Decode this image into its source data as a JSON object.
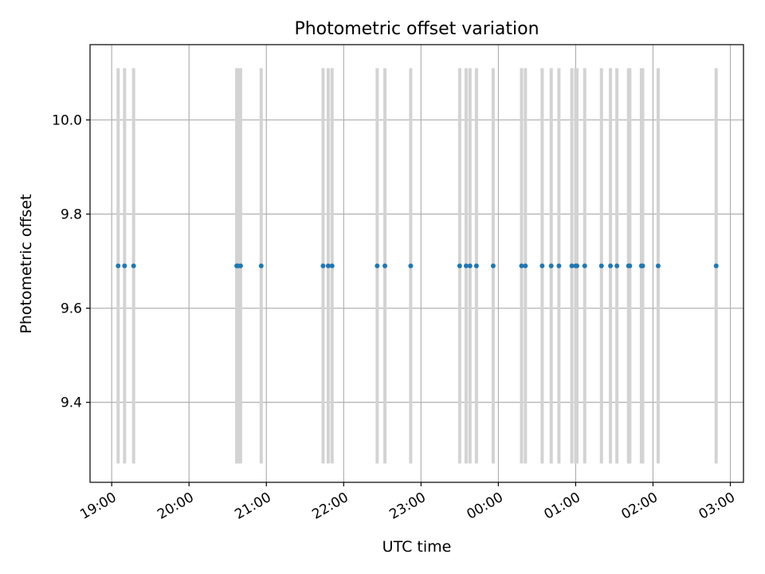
{
  "chart_data": {
    "type": "scatter",
    "title": "Photometric offset variation",
    "xlabel": "UTC time",
    "ylabel": "Photometric offset",
    "x_tick_labels": [
      "19:00",
      "20:00",
      "21:00",
      "22:00",
      "23:00",
      "00:00",
      "01:00",
      "02:00",
      "03:00"
    ],
    "y_tick_labels": [
      "9.4",
      "9.6",
      "9.8",
      "10.0"
    ],
    "y_ticks": [
      9.4,
      9.6,
      9.8,
      10.0
    ],
    "ylim": [
      9.23,
      10.16
    ],
    "xlim_hours": [
      18.72,
      27.17
    ],
    "grid": true,
    "marker_color": "#1f77b4",
    "errorbar_color": "#d3d3d3",
    "errorbar_range": [
      9.27,
      10.11
    ],
    "points": [
      {
        "time": "19:05",
        "value": 9.69
      },
      {
        "time": "19:10",
        "value": 9.69
      },
      {
        "time": "19:17",
        "value": 9.69
      },
      {
        "time": "20:37",
        "value": 9.69
      },
      {
        "time": "20:38",
        "value": 9.69
      },
      {
        "time": "20:40",
        "value": 9.69
      },
      {
        "time": "20:56",
        "value": 9.69
      },
      {
        "time": "21:44",
        "value": 9.69
      },
      {
        "time": "21:48",
        "value": 9.69
      },
      {
        "time": "21:51",
        "value": 9.69
      },
      {
        "time": "22:26",
        "value": 9.69
      },
      {
        "time": "22:32",
        "value": 9.69
      },
      {
        "time": "22:52",
        "value": 9.69
      },
      {
        "time": "23:30",
        "value": 9.69
      },
      {
        "time": "23:35",
        "value": 9.69
      },
      {
        "time": "23:38",
        "value": 9.69
      },
      {
        "time": "23:43",
        "value": 9.69
      },
      {
        "time": "23:56",
        "value": 9.69
      },
      {
        "time": "00:18",
        "value": 9.69
      },
      {
        "time": "00:21",
        "value": 9.69
      },
      {
        "time": "00:34",
        "value": 9.69
      },
      {
        "time": "00:41",
        "value": 9.69
      },
      {
        "time": "00:47",
        "value": 9.69
      },
      {
        "time": "00:57",
        "value": 9.69
      },
      {
        "time": "01:00",
        "value": 9.69
      },
      {
        "time": "01:01",
        "value": 9.69
      },
      {
        "time": "01:07",
        "value": 9.69
      },
      {
        "time": "01:20",
        "value": 9.69
      },
      {
        "time": "01:27",
        "value": 9.69
      },
      {
        "time": "01:32",
        "value": 9.69
      },
      {
        "time": "01:41",
        "value": 9.69
      },
      {
        "time": "01:42",
        "value": 9.69
      },
      {
        "time": "01:51",
        "value": 9.69
      },
      {
        "time": "01:52",
        "value": 9.69
      },
      {
        "time": "02:04",
        "value": 9.69
      },
      {
        "time": "02:49",
        "value": 9.69
      }
    ]
  }
}
